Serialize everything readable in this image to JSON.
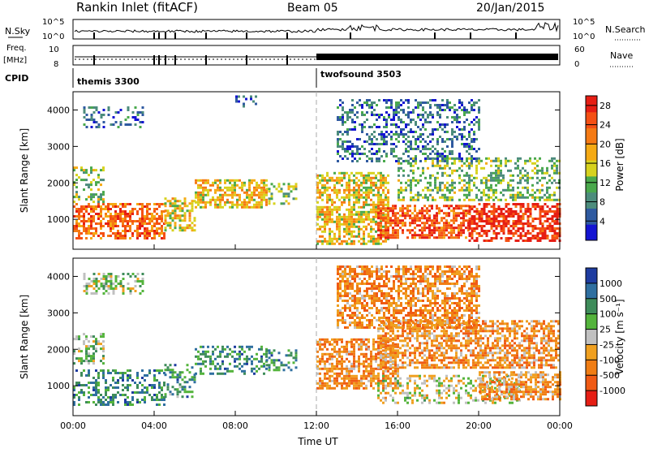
{
  "header": {
    "title": "Rankin Inlet (fitACF)",
    "beam": "Beam 05",
    "date": "20/Jan/2015"
  },
  "strip": {
    "nsky_label": "N.Sky",
    "nsky_ticks": [
      "10^5",
      "10^0"
    ],
    "nsearch_label": "N.Search",
    "nsearch_ticks": [
      "10^5",
      "10^0"
    ],
    "freq_label": "Freq.",
    "freq_unit": "[MHz]",
    "freq_ticks": [
      "10",
      "8"
    ],
    "nave_label": "Nave",
    "nave_ticks": [
      "60",
      "0"
    ],
    "cpid_label": "CPID",
    "cpid_entries": [
      {
        "name": "themis 3300",
        "start_hour": 0
      },
      {
        "name": "twofsound 3503",
        "start_hour": 12
      }
    ]
  },
  "colors": {
    "frame": "#000000",
    "dashed_line": "#aaaaaa",
    "power_scale": [
      "#1414d2",
      "#2f5aa0",
      "#4c8c7c",
      "#4aa94c",
      "#d7d21e",
      "#f5aa14",
      "#f57a14",
      "#f55014",
      "#e61e14"
    ],
    "velocity_scale": [
      "#1e3ca0",
      "#2f6fa0",
      "#3e8c5a",
      "#54b43c",
      "#c0c0c0",
      "#f0a020",
      "#f07d14",
      "#f05a14",
      "#e61e14"
    ]
  },
  "chart_data": [
    {
      "type": "heatmap",
      "panel": "power",
      "xlabel": "",
      "ylabel": "Slant Range [km]",
      "xlim": [
        0,
        24
      ],
      "ylim": [
        180,
        4500
      ],
      "x_ticks": [
        "00:00",
        "04:00",
        "08:00",
        "12:00",
        "16:00",
        "20:00",
        "00:00"
      ],
      "y_ticks": [
        1000,
        2000,
        3000,
        4000
      ],
      "colorbar_label": "Power [dB]",
      "colorbar_ticks": [
        4,
        8,
        12,
        16,
        20,
        24,
        28
      ],
      "colorbar_range": [
        0,
        30
      ],
      "blobs": [
        {
          "t0": 0.0,
          "t1": 4.5,
          "r0": 450,
          "r1": 1450,
          "level": 0.78
        },
        {
          "t0": 0.0,
          "t1": 1.5,
          "r0": 1500,
          "r1": 2450,
          "level": 0.42
        },
        {
          "t0": 4.5,
          "t1": 6.0,
          "r0": 700,
          "r1": 1600,
          "level": 0.55
        },
        {
          "t0": 6.0,
          "t1": 9.5,
          "r0": 1300,
          "r1": 2100,
          "level": 0.58
        },
        {
          "t0": 9.5,
          "t1": 11.0,
          "r0": 1400,
          "r1": 2000,
          "level": 0.45
        },
        {
          "t0": 12.0,
          "t1": 15.5,
          "r0": 300,
          "r1": 2300,
          "level": 0.55
        },
        {
          "t0": 15.0,
          "t1": 19.5,
          "r0": 500,
          "r1": 1400,
          "level": 0.82
        },
        {
          "t0": 19.5,
          "t1": 24.0,
          "r0": 400,
          "r1": 1450,
          "level": 0.92
        },
        {
          "t0": 16.0,
          "t1": 24.0,
          "r0": 1500,
          "r1": 2700,
          "level": 0.4
        },
        {
          "t0": 0.5,
          "t1": 3.5,
          "r0": 3500,
          "r1": 4100,
          "level": 0.2
        },
        {
          "t0": 8.0,
          "t1": 9.0,
          "r0": 4100,
          "r1": 4400,
          "level": 0.15
        },
        {
          "t0": 13.0,
          "t1": 20.0,
          "r0": 2600,
          "r1": 4300,
          "level": 0.22
        }
      ]
    },
    {
      "type": "heatmap",
      "panel": "velocity",
      "xlabel": "Time UT",
      "ylabel": "Slant Range [km]",
      "xlim": [
        0,
        24
      ],
      "ylim": [
        180,
        4500
      ],
      "x_ticks": [
        "00:00",
        "04:00",
        "08:00",
        "12:00",
        "16:00",
        "20:00",
        "00:00"
      ],
      "y_ticks": [
        1000,
        2000,
        3000,
        4000
      ],
      "colorbar_label": "Velocity [m s⁻¹]",
      "colorbar_ticks": [
        "1000",
        "500",
        "100",
        "25",
        "-25",
        "-100",
        "-500",
        "-1000"
      ],
      "blobs": [
        {
          "t0": 0.0,
          "t1": 4.5,
          "r0": 450,
          "r1": 1450,
          "level": 0.25
        },
        {
          "t0": 0.0,
          "t1": 1.5,
          "r0": 1600,
          "r1": 2450,
          "level": 0.42
        },
        {
          "t0": 4.5,
          "t1": 6.0,
          "r0": 700,
          "r1": 1600,
          "level": 0.28
        },
        {
          "t0": 6.0,
          "t1": 9.5,
          "r0": 1300,
          "r1": 2100,
          "level": 0.27
        },
        {
          "t0": 9.5,
          "t1": 11.0,
          "r0": 1400,
          "r1": 2000,
          "level": 0.26
        },
        {
          "t0": 12.0,
          "t1": 16.0,
          "r0": 900,
          "r1": 2300,
          "level": 0.7
        },
        {
          "t0": 15.0,
          "t1": 22.0,
          "r0": 500,
          "r1": 1300,
          "level": 0.5
        },
        {
          "t0": 20.0,
          "t1": 24.0,
          "r0": 600,
          "r1": 1400,
          "level": 0.66
        },
        {
          "t0": 15.0,
          "t1": 24.0,
          "r0": 1500,
          "r1": 2800,
          "level": 0.68
        },
        {
          "t0": 0.5,
          "t1": 3.5,
          "r0": 3500,
          "r1": 4100,
          "level": 0.45
        },
        {
          "t0": 13.0,
          "t1": 20.0,
          "r0": 2600,
          "r1": 4300,
          "level": 0.7
        }
      ]
    }
  ]
}
